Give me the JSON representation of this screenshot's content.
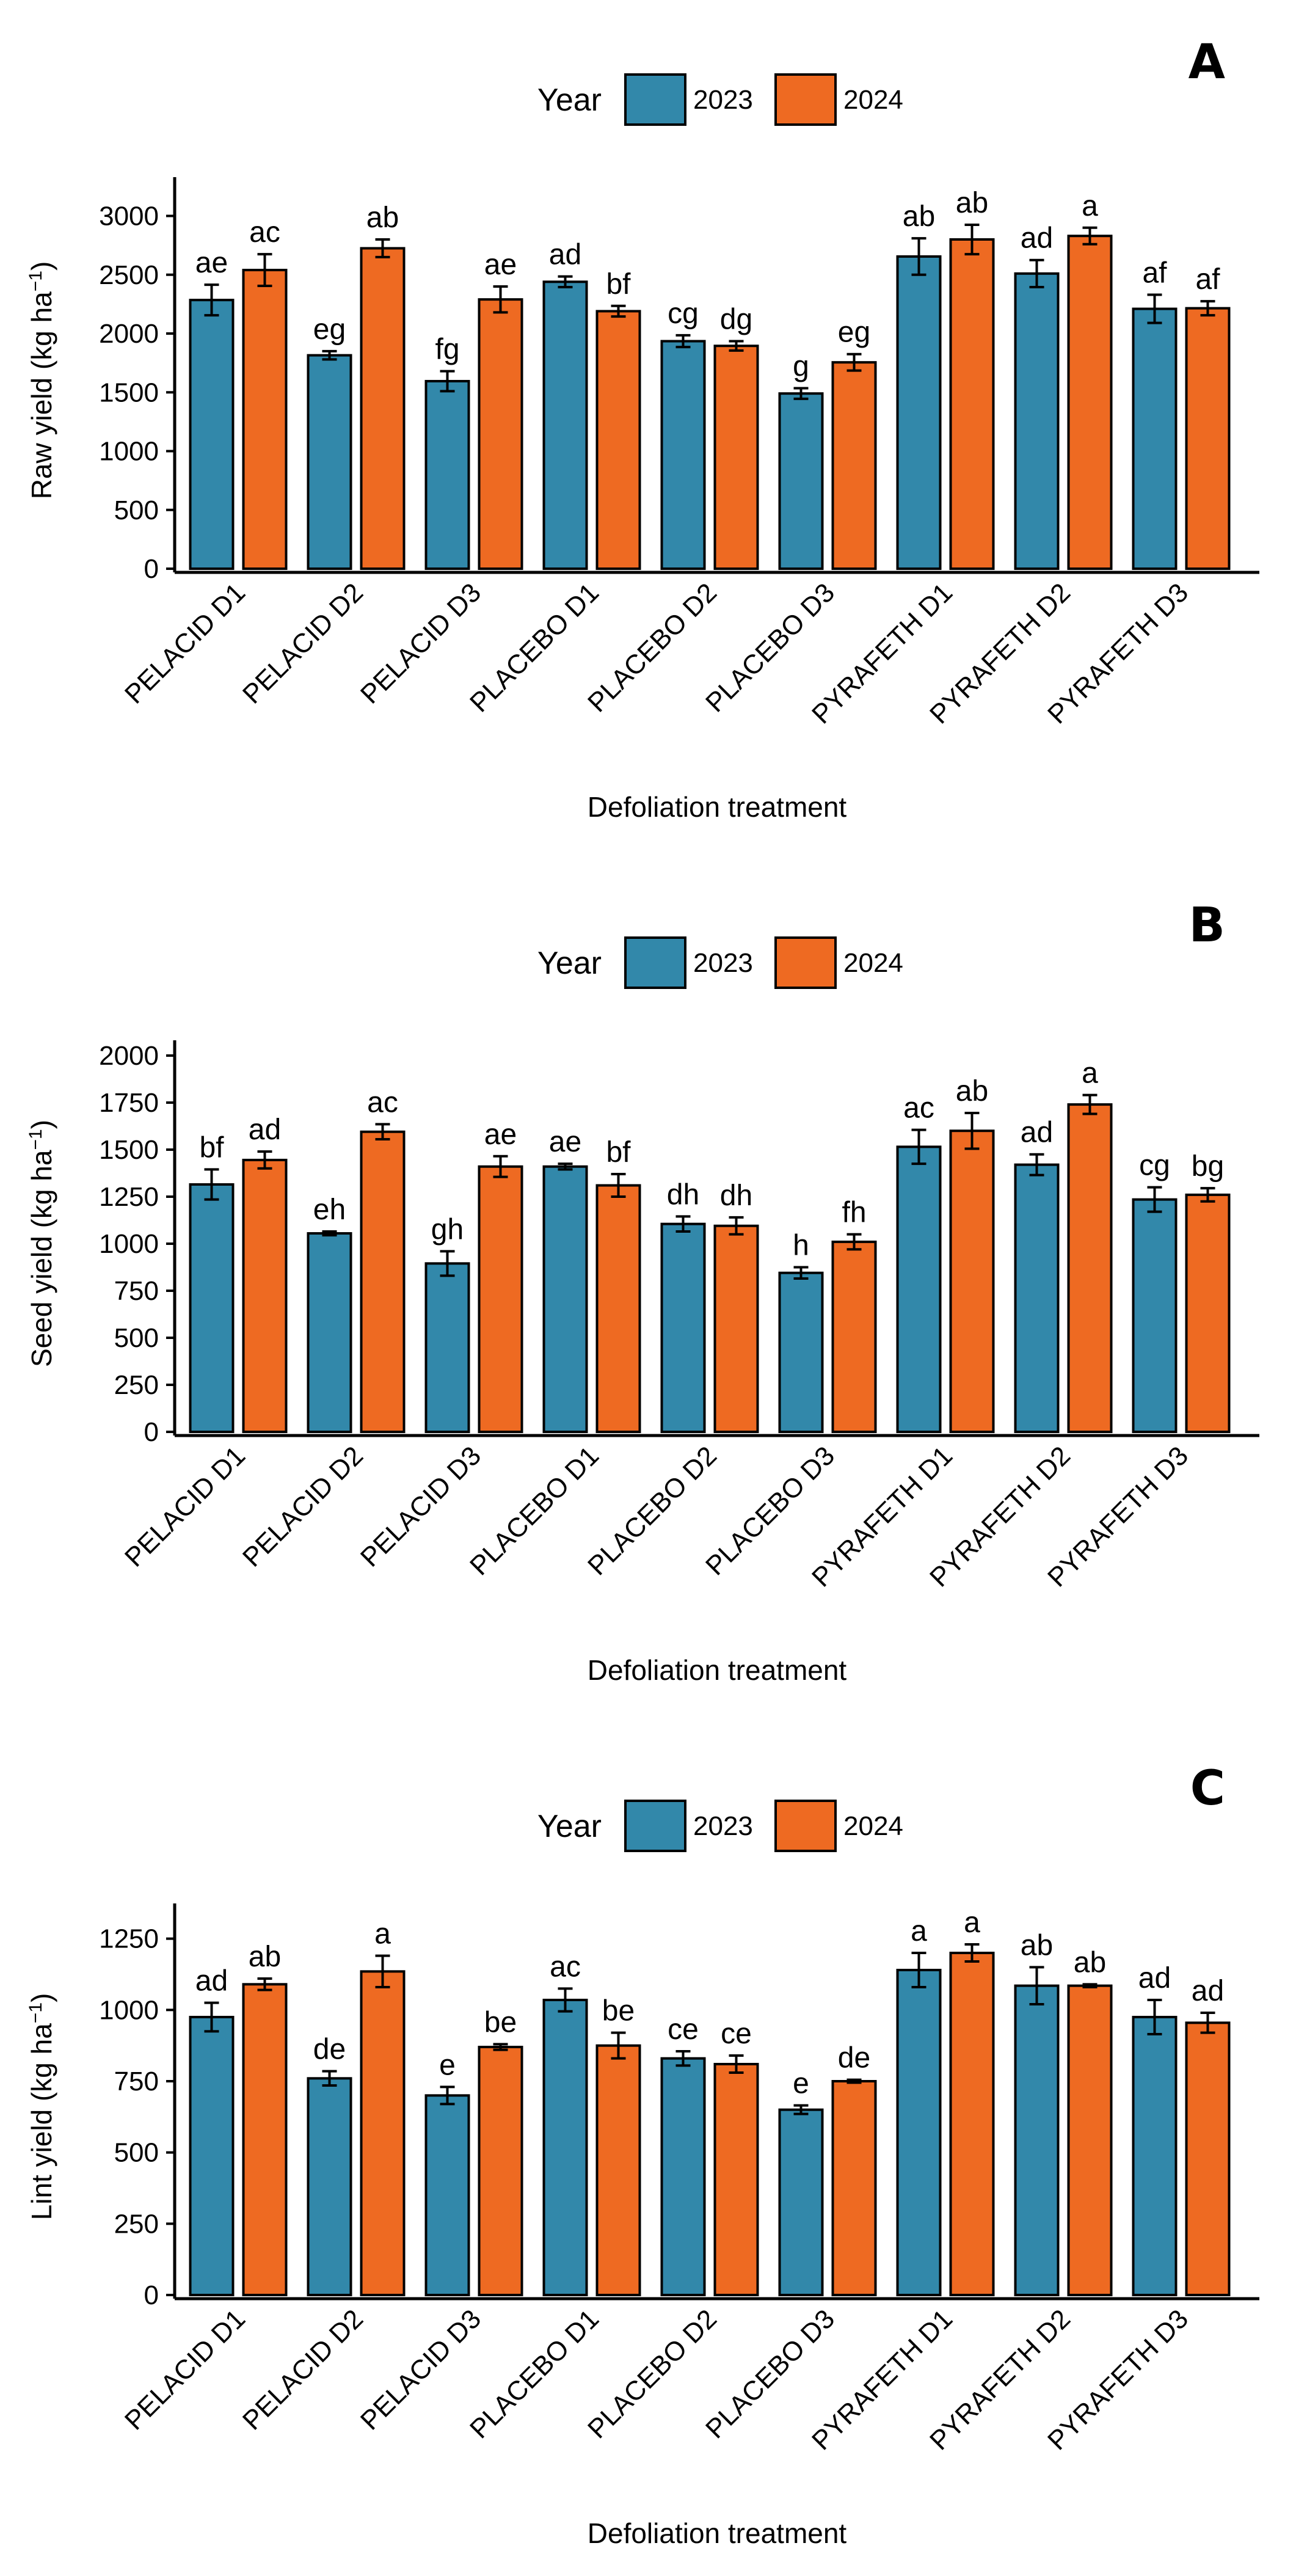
{
  "colors": {
    "y2023": "#3288AA",
    "y2024": "#EE6A22",
    "axis": "#000000"
  },
  "chart_data": [
    {
      "type": "bar",
      "panel": "A",
      "legend_title": "Year",
      "series_names": [
        "2023",
        "2024"
      ],
      "xlabel": "Defoliation treatment",
      "ylabel_main": "Raw yield (kg ha",
      "ylabel_sup": "−1",
      "ylabel_close": ")",
      "ylim": [
        0,
        3200
      ],
      "yticks": [
        0,
        500,
        1000,
        1500,
        2000,
        2500,
        3000
      ],
      "categories": [
        "PELACID D1",
        "PELACID D2",
        "PELACID D3",
        "PLACEBO D1",
        "PLACEBO D2",
        "PLACEBO D3",
        "PYRAFETH D1",
        "PYRAFETH D2",
        "PYRAFETH D3"
      ],
      "series": [
        {
          "name": "2023",
          "values": [
            2285,
            1815,
            1595,
            2440,
            1935,
            1490,
            2655,
            2510,
            2210
          ],
          "errors": [
            130,
            35,
            85,
            45,
            50,
            45,
            155,
            115,
            120
          ],
          "labels": [
            "ae",
            "eg",
            "fg",
            "ad",
            "cg",
            "g",
            "ab",
            "ad",
            "af"
          ]
        },
        {
          "name": "2024",
          "values": [
            2540,
            2725,
            2290,
            2190,
            1895,
            1755,
            2800,
            2830,
            2215
          ],
          "errors": [
            135,
            75,
            110,
            45,
            40,
            70,
            125,
            70,
            60
          ],
          "labels": [
            "ac",
            "ab",
            "ae",
            "bf",
            "dg",
            "eg",
            "ab",
            "a",
            "af"
          ]
        }
      ]
    },
    {
      "type": "bar",
      "panel": "B",
      "legend_title": "Year",
      "series_names": [
        "2023",
        "2024"
      ],
      "xlabel": "Defoliation treatment",
      "ylabel_main": "Seed yield (kg ha",
      "ylabel_sup": "−1",
      "ylabel_close": ")",
      "ylim": [
        0,
        2000
      ],
      "yticks": [
        0,
        250,
        500,
        750,
        1000,
        1250,
        1500,
        1750,
        2000
      ],
      "categories": [
        "PELACID D1",
        "PELACID D2",
        "PELACID D3",
        "PLACEBO D1",
        "PLACEBO D2",
        "PLACEBO D3",
        "PYRAFETH D1",
        "PYRAFETH D2",
        "PYRAFETH D3"
      ],
      "series": [
        {
          "name": "2023",
          "values": [
            1315,
            1055,
            895,
            1410,
            1105,
            845,
            1515,
            1420,
            1235
          ],
          "errors": [
            80,
            10,
            65,
            15,
            40,
            30,
            90,
            55,
            65
          ],
          "labels": [
            "bf",
            "eh",
            "gh",
            "ae",
            "dh",
            "h",
            "ac",
            "ad",
            "cg"
          ]
        },
        {
          "name": "2024",
          "values": [
            1445,
            1595,
            1410,
            1310,
            1095,
            1010,
            1600,
            1740,
            1260
          ],
          "errors": [
            45,
            40,
            55,
            60,
            45,
            40,
            95,
            50,
            35
          ],
          "labels": [
            "ad",
            "ac",
            "ae",
            "bf",
            "dh",
            "fh",
            "ab",
            "a",
            "bg"
          ]
        }
      ]
    },
    {
      "type": "bar",
      "panel": "C",
      "legend_title": "Year",
      "series_names": [
        "2023",
        "2024"
      ],
      "xlabel": "Defoliation treatment",
      "ylabel_main": "Lint yield (kg ha",
      "ylabel_sup": "−1",
      "ylabel_close": ")",
      "ylim": [
        0,
        1320
      ],
      "yticks": [
        0,
        250,
        500,
        750,
        1000,
        1250
      ],
      "categories": [
        "PELACID D1",
        "PELACID D2",
        "PELACID D3",
        "PLACEBO D1",
        "PLACEBO D2",
        "PLACEBO D3",
        "PYRAFETH D1",
        "PYRAFETH D2",
        "PYRAFETH D3"
      ],
      "series": [
        {
          "name": "2023",
          "values": [
            975,
            760,
            700,
            1035,
            830,
            650,
            1140,
            1085,
            975
          ],
          "errors": [
            50,
            25,
            30,
            40,
            25,
            15,
            60,
            65,
            60
          ],
          "labels": [
            "ad",
            "de",
            "e",
            "ac",
            "ce",
            "e",
            "a",
            "ab",
            "ad"
          ]
        },
        {
          "name": "2024",
          "values": [
            1090,
            1135,
            870,
            875,
            810,
            750,
            1200,
            1085,
            955
          ],
          "errors": [
            20,
            55,
            10,
            45,
            30,
            5,
            30,
            5,
            35
          ],
          "labels": [
            "ab",
            "a",
            "be",
            "be",
            "ce",
            "de",
            "a",
            "ab",
            "ad"
          ]
        }
      ]
    }
  ]
}
